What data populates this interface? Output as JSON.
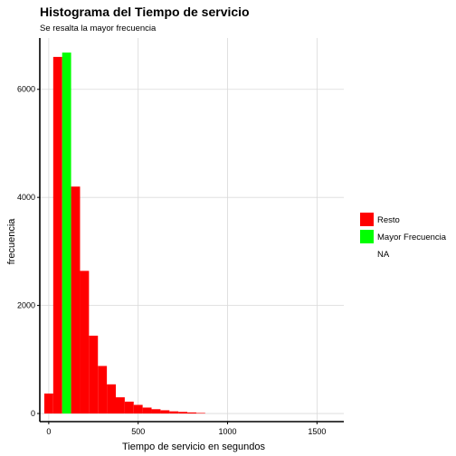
{
  "chart_data": {
    "type": "bar",
    "title": "Histograma del Tiempo de servicio",
    "subtitle": "Se resalta la mayor frecuencia",
    "xlabel": "Tiempo de servicio en segundos",
    "ylabel": "frecuencia",
    "xlim": [
      -50,
      1650
    ],
    "ylim": [
      -150,
      6950
    ],
    "xticks": [
      0,
      500,
      1000,
      1500
    ],
    "yticks": [
      0,
      2000,
      4000,
      6000
    ],
    "grid": true,
    "bin_width": 50,
    "bins": [
      {
        "x": 0,
        "count": 370,
        "group": "Resto"
      },
      {
        "x": 50,
        "count": 6600,
        "group": "Resto"
      },
      {
        "x": 100,
        "count": 6680,
        "group": "Mayor Frecuencia"
      },
      {
        "x": 150,
        "count": 4200,
        "group": "Resto"
      },
      {
        "x": 200,
        "count": 2640,
        "group": "Resto"
      },
      {
        "x": 250,
        "count": 1440,
        "group": "Resto"
      },
      {
        "x": 300,
        "count": 880,
        "group": "Resto"
      },
      {
        "x": 350,
        "count": 540,
        "group": "Resto"
      },
      {
        "x": 400,
        "count": 300,
        "group": "Resto"
      },
      {
        "x": 450,
        "count": 220,
        "group": "Resto"
      },
      {
        "x": 500,
        "count": 160,
        "group": "Resto"
      },
      {
        "x": 550,
        "count": 110,
        "group": "Resto"
      },
      {
        "x": 600,
        "count": 80,
        "group": "Resto"
      },
      {
        "x": 650,
        "count": 60,
        "group": "Resto"
      },
      {
        "x": 700,
        "count": 40,
        "group": "Resto"
      },
      {
        "x": 750,
        "count": 30,
        "group": "Resto"
      },
      {
        "x": 800,
        "count": 20,
        "group": "Resto"
      },
      {
        "x": 850,
        "count": 10,
        "group": "Resto"
      }
    ],
    "legend": {
      "position": "right",
      "entries": [
        {
          "label": "Resto",
          "color": "#FF0000"
        },
        {
          "label": "Mayor Frecuencia",
          "color": "#00FF00"
        },
        {
          "label": "NA",
          "color": "#FFFFFF"
        }
      ]
    },
    "colors": {
      "grid": "#D9D9D9",
      "axis": "#000000"
    }
  }
}
